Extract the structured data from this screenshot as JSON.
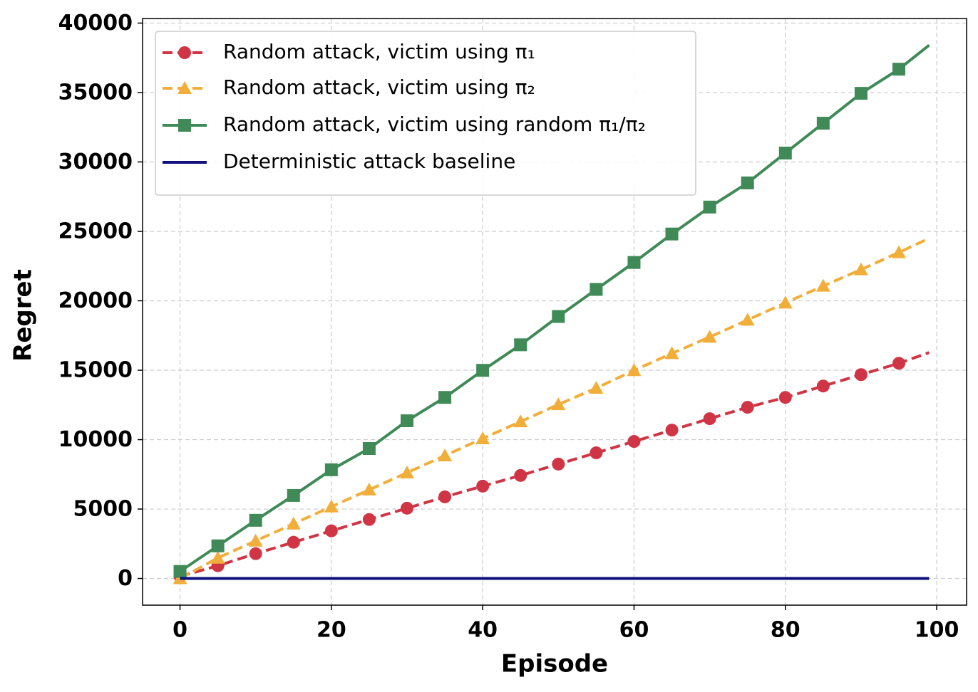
{
  "chart_data": {
    "type": "line",
    "x_label": "Episode",
    "y_label": "Regret",
    "x": [
      0,
      5,
      10,
      15,
      20,
      25,
      30,
      35,
      40,
      45,
      50,
      55,
      60,
      65,
      70,
      75,
      80,
      85,
      90,
      95,
      99
    ],
    "markevery": 5,
    "series": [
      {
        "name": "Random attack, victim using π₁",
        "color": "#d03545",
        "linestyle": "dashed",
        "marker": "circle",
        "values": [
          150,
          920,
          1790,
          2610,
          3430,
          4250,
          5060,
          5880,
          6650,
          7420,
          8240,
          9050,
          9870,
          10690,
          11510,
          12330,
          13040,
          13860,
          14680,
          15500,
          16270
        ]
      },
      {
        "name": "Random attack, victim using π₂",
        "color": "#f2ae3a",
        "linestyle": "dashed",
        "marker": "triangle",
        "values": [
          0,
          1480,
          2710,
          3940,
          5170,
          6390,
          7620,
          8850,
          10080,
          11300,
          12530,
          13710,
          14990,
          16210,
          17390,
          18620,
          19850,
          21070,
          22250,
          23480,
          24500
        ]
      },
      {
        "name": "Random attack, victim using random π₁/π₂",
        "color": "#3f8a57",
        "linestyle": "solid",
        "marker": "square",
        "values": [
          510,
          2350,
          4190,
          5980,
          7830,
          9360,
          11360,
          13040,
          14990,
          16830,
          18870,
          20820,
          22760,
          24810,
          26750,
          28490,
          30640,
          32790,
          34940,
          36680,
          38410
        ]
      },
      {
        "name": "Deterministic attack baseline",
        "color": "#10107e",
        "linestyle": "solid",
        "marker": null,
        "values": [
          0,
          0,
          0,
          0,
          0,
          0,
          0,
          0,
          0,
          0,
          0,
          0,
          0,
          0,
          0,
          0,
          0,
          0,
          0,
          0,
          0
        ]
      }
    ],
    "xlim": [
      -4.95,
      103.95
    ],
    "ylim": [
      -1920,
      40330
    ],
    "xticks": [
      0,
      20,
      40,
      60,
      80,
      100
    ],
    "yticks": [
      0,
      5000,
      10000,
      15000,
      20000,
      25000,
      30000,
      35000,
      40000
    ],
    "grid": true,
    "legend": "upper left"
  }
}
